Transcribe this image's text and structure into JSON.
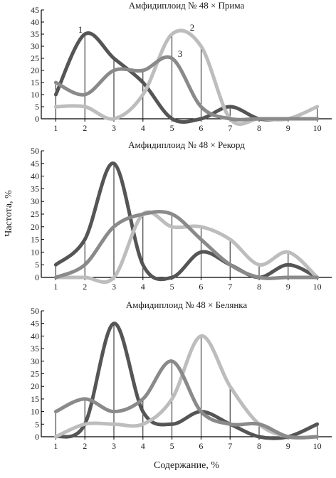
{
  "ylabel": "Частота, %",
  "xlabel": "Содержание, %",
  "colors": {
    "curve1": "#555555",
    "curve2": "#bdbdbd",
    "curve3": "#8a8a8a",
    "axis": "#000000"
  },
  "chart_data": [
    {
      "type": "line",
      "title": "Амфидиплоид № 48 × Прима",
      "x": [
        1,
        2,
        3,
        4,
        5,
        6,
        7,
        8,
        9,
        10
      ],
      "xlim": [
        0.5,
        10.5
      ],
      "ylim": [
        0,
        45
      ],
      "yticks": [
        "0",
        "5",
        "10",
        "15",
        "20",
        "25",
        "30",
        "35",
        "40",
        "45"
      ],
      "xticks": [
        "1",
        "2",
        "3",
        "4",
        "5",
        "6",
        "7",
        "8",
        "9",
        "10"
      ],
      "curve_labels": [
        "1",
        "2",
        "3"
      ],
      "series": [
        {
          "values": [
            10,
            35,
            25,
            15,
            0,
            0,
            5,
            0,
            0,
            0
          ]
        },
        {
          "values": [
            5,
            5,
            0,
            10,
            35,
            30,
            0,
            0,
            0,
            5
          ]
        },
        {
          "values": [
            15,
            10,
            20,
            20,
            25,
            5,
            0,
            0,
            0,
            0
          ]
        }
      ]
    },
    {
      "type": "line",
      "title": "Амфидиплоид № 48 × Рекорд",
      "x": [
        1,
        2,
        3,
        4,
        5,
        6,
        7,
        8,
        9,
        10
      ],
      "xlim": [
        0.5,
        10.5
      ],
      "ylim": [
        0,
        50
      ],
      "yticks": [
        "0",
        "5",
        "10",
        "15",
        "20",
        "25",
        "30",
        "35",
        "40",
        "45",
        "50"
      ],
      "xticks": [
        "1",
        "2",
        "3",
        "4",
        "5",
        "6",
        "7",
        "8",
        "9",
        "10"
      ],
      "series": [
        {
          "values": [
            5,
            15,
            45,
            5,
            0,
            10,
            5,
            0,
            5,
            0
          ]
        },
        {
          "values": [
            0,
            0,
            0,
            25,
            20,
            20,
            15,
            5,
            10,
            0
          ]
        },
        {
          "values": [
            0,
            5,
            20,
            25,
            25,
            15,
            5,
            0,
            0,
            0
          ]
        }
      ]
    },
    {
      "type": "line",
      "title": "Амфидиплоид № 48 × Белянка",
      "x": [
        1,
        2,
        3,
        4,
        5,
        6,
        7,
        8,
        9,
        10
      ],
      "xlim": [
        0.5,
        10.5
      ],
      "ylim": [
        0,
        50
      ],
      "yticks": [
        "0",
        "5",
        "10",
        "15",
        "20",
        "25",
        "30",
        "35",
        "40",
        "45",
        "50"
      ],
      "xticks": [
        "1",
        "2",
        "3",
        "4",
        "5",
        "6",
        "7",
        "8",
        "9",
        "10"
      ],
      "series": [
        {
          "values": [
            0,
            5,
            45,
            10,
            5,
            10,
            5,
            0,
            0,
            5
          ]
        },
        {
          "values": [
            0,
            5,
            5,
            5,
            15,
            40,
            20,
            5,
            0,
            0
          ]
        },
        {
          "values": [
            10,
            15,
            10,
            15,
            30,
            10,
            5,
            5,
            0,
            0
          ]
        }
      ]
    }
  ]
}
